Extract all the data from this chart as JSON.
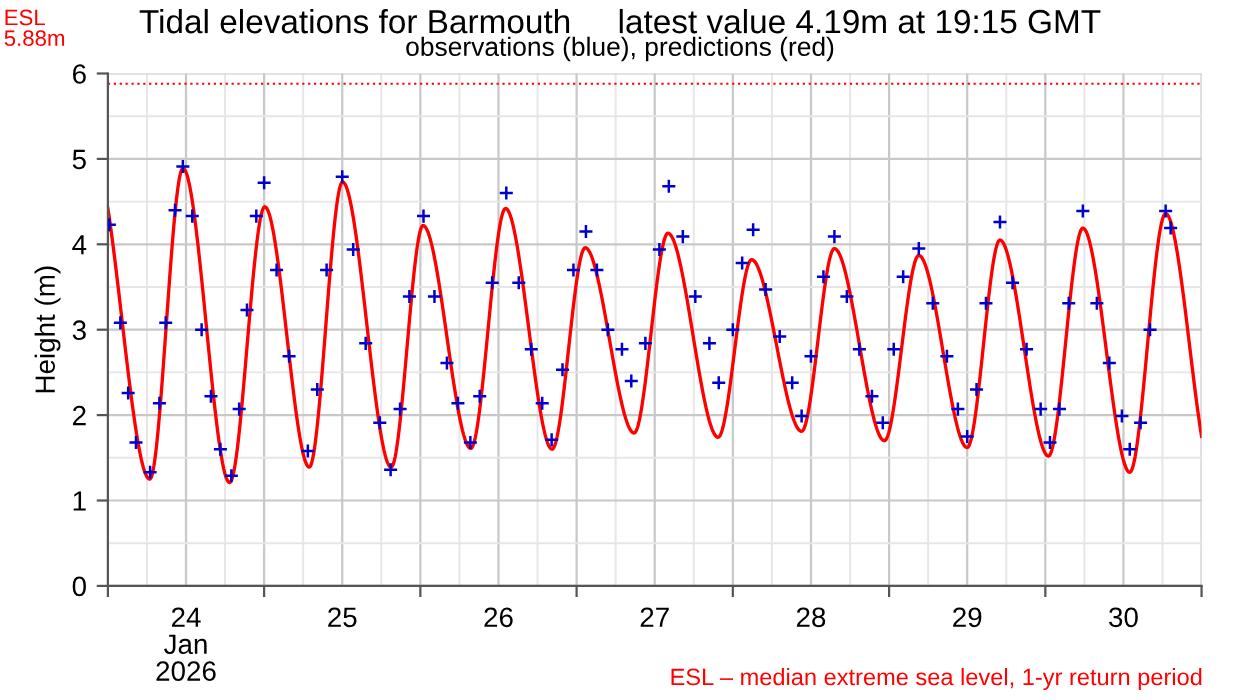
{
  "chart_data": {
    "type": "line",
    "title": "Tidal elevations for Barmouth     latest value 4.19m at 19:15 GMT",
    "subtitle": "observations (blue), predictions (red)",
    "ylabel": "Height (m)",
    "annotations": [
      "ESL – median extreme sea level, 1-yr return period"
    ],
    "xlim": [
      "2026-01-24T00:00",
      "2026-01-31T00:00"
    ],
    "xticks": [
      {
        "value": "2026-01-24T00:00",
        "label": null
      },
      {
        "value": "2026-01-24T12:00",
        "label": "24\nJan\n2026"
      },
      {
        "value": "2026-01-25T00:00",
        "label": null
      },
      {
        "value": "2026-01-25T12:00",
        "label": "25"
      },
      {
        "value": "2026-01-26T00:00",
        "label": null
      },
      {
        "value": "2026-01-26T12:00",
        "label": "26"
      },
      {
        "value": "2026-01-27T00:00",
        "label": null
      },
      {
        "value": "2026-01-27T12:00",
        "label": "27"
      },
      {
        "value": "2026-01-28T00:00",
        "label": null
      },
      {
        "value": "2026-01-28T12:00",
        "label": "28"
      },
      {
        "value": "2026-01-29T00:00",
        "label": null
      },
      {
        "value": "2026-01-29T12:00",
        "label": "29"
      },
      {
        "value": "2026-01-30T00:00",
        "label": null
      },
      {
        "value": "2026-01-30T12:00",
        "label": "30"
      },
      {
        "value": "2026-01-31T00:00",
        "label": null
      }
    ],
    "ylim": [
      0,
      6
    ],
    "yticks": [
      0,
      1,
      2,
      3,
      4,
      5,
      6
    ],
    "grid": true,
    "ref_lines": [
      {
        "axis": "y",
        "value": 5.88,
        "label": "ESL\n5.88m",
        "color": "#ff0000",
        "line_style": "dotted"
      }
    ],
    "series": [
      {
        "color": "#ff0000",
        "marker": "none",
        "line_style": "solid",
        "x": [
          "2026-01-24T00:00",
          "2026-01-24T06:26",
          "2026-01-24T11:32",
          "2026-01-24T18:42",
          "2026-01-25T00:06",
          "2026-01-25T06:56",
          "2026-01-25T12:03",
          "2026-01-25T19:31",
          "2026-01-26T00:25",
          "2026-01-26T07:45",
          "2026-01-26T13:05",
          "2026-01-26T20:14",
          "2026-01-27T01:19",
          "2026-01-27T08:50",
          "2026-01-27T14:02",
          "2026-01-27T21:44",
          "2026-01-28T02:53",
          "2026-01-28T10:34",
          "2026-01-28T15:36",
          "2026-01-28T23:17",
          "2026-01-29T04:34",
          "2026-01-29T12:00",
          "2026-01-29T17:02",
          "2026-01-30T00:29",
          "2026-01-30T05:46",
          "2026-01-30T12:58",
          "2026-01-30T18:29",
          "2026-01-31T00:00"
        ],
        "values": [
          4.42,
          1.25,
          4.89,
          1.21,
          4.44,
          1.39,
          4.73,
          1.39,
          4.22,
          1.61,
          4.42,
          1.6,
          3.96,
          1.79,
          4.13,
          1.74,
          3.82,
          1.81,
          3.95,
          1.7,
          3.87,
          1.62,
          4.05,
          1.52,
          4.19,
          1.33,
          4.36,
          1.75
        ]
      },
      {
        "type": "scatter",
        "color": "#0000cc",
        "marker": "cross",
        "x": [
          "2026-01-24T00:14",
          "2026-01-24T01:55",
          "2026-01-24T03:07",
          "2026-01-24T04:19",
          "2026-01-24T06:29",
          "2026-01-24T07:55",
          "2026-01-24T08:53",
          "2026-01-24T10:19",
          "2026-01-24T11:31",
          "2026-01-24T12:58",
          "2026-01-24T14:24",
          "2026-01-24T15:50",
          "2026-01-24T17:17",
          "2026-01-24T18:58",
          "2026-01-24T20:10",
          "2026-01-24T21:22",
          "2026-01-24T22:48",
          "2026-01-25T00:00",
          "2026-01-25T01:55",
          "2026-01-25T03:50",
          "2026-01-25T06:43",
          "2026-01-25T08:10",
          "2026-01-25T09:36",
          "2026-01-25T12:00",
          "2026-01-25T13:41",
          "2026-01-25T15:36",
          "2026-01-25T17:46",
          "2026-01-25T19:26",
          "2026-01-25T20:53",
          "2026-01-25T22:19",
          "2026-01-26T00:29",
          "2026-01-26T02:10",
          "2026-01-26T04:05",
          "2026-01-26T05:46",
          "2026-01-26T07:41",
          "2026-01-26T09:07",
          "2026-01-26T11:02",
          "2026-01-26T13:12",
          "2026-01-26T15:07",
          "2026-01-26T17:02",
          "2026-01-26T18:43",
          "2026-01-26T20:10",
          "2026-01-26T21:50",
          "2026-01-26T23:31",
          "2026-01-27T01:26",
          "2026-01-27T03:07",
          "2026-01-27T04:48",
          "2026-01-27T06:58",
          "2026-01-27T08:24",
          "2026-01-27T10:34",
          "2026-01-27T12:43",
          "2026-01-27T14:10",
          "2026-01-27T16:19",
          "2026-01-27T18:14",
          "2026-01-27T20:24",
          "2026-01-27T21:50",
          "2026-01-28T00:00",
          "2026-01-28T01:26",
          "2026-01-28T03:07",
          "2026-01-28T05:02",
          "2026-01-28T07:12",
          "2026-01-28T09:07",
          "2026-01-28T10:34",
          "2026-01-28T12:00",
          "2026-01-28T13:55",
          "2026-01-28T15:36",
          "2026-01-28T17:31",
          "2026-01-28T19:26",
          "2026-01-28T21:22",
          "2026-01-28T23:02",
          "2026-01-29T00:43",
          "2026-01-29T02:10",
          "2026-01-29T04:34",
          "2026-01-29T06:43",
          "2026-01-29T08:53",
          "2026-01-29T10:34",
          "2026-01-29T12:00",
          "2026-01-29T13:26",
          "2026-01-29T14:53",
          "2026-01-29T17:02",
          "2026-01-29T18:58",
          "2026-01-29T21:07",
          "2026-01-29T23:17",
          "2026-01-30T00:43",
          "2026-01-30T02:10",
          "2026-01-30T03:36",
          "2026-01-30T05:46",
          "2026-01-30T07:55",
          "2026-01-30T09:50",
          "2026-01-30T11:46",
          "2026-01-30T12:58",
          "2026-01-30T14:38",
          "2026-01-30T16:05",
          "2026-01-30T18:29",
          "2026-01-30T19:15"
        ],
        "values": [
          4.23,
          3.08,
          2.26,
          1.68,
          1.33,
          2.14,
          3.08,
          4.4,
          4.91,
          4.33,
          3.0,
          2.22,
          1.6,
          1.29,
          2.07,
          3.23,
          4.33,
          4.72,
          3.7,
          2.69,
          1.58,
          2.3,
          3.7,
          4.79,
          3.94,
          2.84,
          1.91,
          1.36,
          2.07,
          3.39,
          4.33,
          3.39,
          2.61,
          2.14,
          1.68,
          2.22,
          3.55,
          4.6,
          3.55,
          2.77,
          2.14,
          1.71,
          2.53,
          3.7,
          4.15,
          3.7,
          3.0,
          2.77,
          2.4,
          2.84,
          3.94,
          4.68,
          4.09,
          3.39,
          2.84,
          2.38,
          3.0,
          3.78,
          4.17,
          3.47,
          2.92,
          2.38,
          1.99,
          2.69,
          3.62,
          4.09,
          3.39,
          2.77,
          2.22,
          1.91,
          2.77,
          3.62,
          3.95,
          3.31,
          2.69,
          2.07,
          1.75,
          2.3,
          3.31,
          4.26,
          3.55,
          2.77,
          2.07,
          1.68,
          2.07,
          3.31,
          4.39,
          3.31,
          2.61,
          1.99,
          1.6,
          1.91,
          3.0,
          4.39,
          4.19
        ]
      }
    ]
  }
}
